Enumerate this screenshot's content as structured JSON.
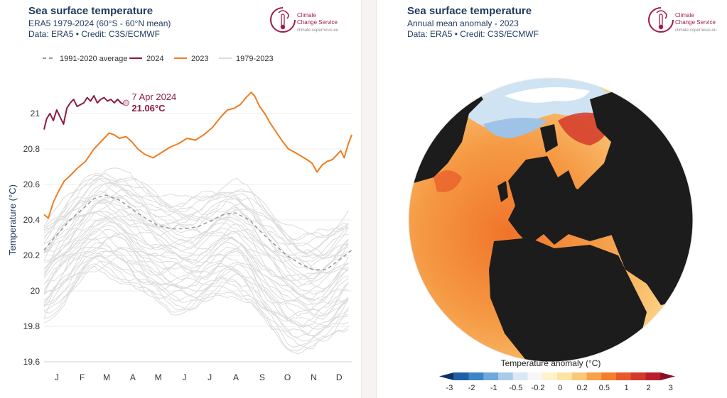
{
  "left": {
    "title": "Sea surface temperature",
    "subtitle": "ERA5 1979-2024 (60°S - 60°N mean)",
    "credit": "Data: ERA5 • Credit: C3S/ECMWF",
    "logo_line1": "Climate",
    "logo_line2": "Change Service",
    "logo_url": "climate.copernicus.eu",
    "annotation_date": "7 Apr 2024",
    "annotation_value": "21.06°C"
  },
  "right": {
    "title": "Sea surface temperature",
    "subtitle": "Annual mean anomaly - 2023",
    "credit": "Data: ERA5 • Credit: C3S/ECMWF",
    "logo_line1": "Climate",
    "logo_line2": "Change Service",
    "logo_url": "climate.copernicus.eu"
  },
  "colors": {
    "series_2024": "#8b1a3f",
    "series_2023": "#ee7d22",
    "series_average": "#9a9a9a",
    "series_history": "#dcdcdc",
    "title_text": "#1f3a5f",
    "brand": "#a01c46"
  },
  "chart_data": [
    {
      "type": "line",
      "ylabel": "Temperature (°C)",
      "xlabel": "",
      "ylim": [
        19.6,
        21.2
      ],
      "yticks": [
        19.6,
        19.8,
        20,
        20.2,
        20.4,
        20.6,
        20.8,
        21
      ],
      "ytick_labels": [
        "19.6",
        "19.8",
        "20",
        "20.2",
        "20.4",
        "20.6",
        "20.8",
        "21"
      ],
      "x_month_ticks": [
        "J",
        "F",
        "M",
        "A",
        "M",
        "J",
        "J",
        "A",
        "S",
        "O",
        "N",
        "D"
      ],
      "grid": true,
      "legend_position": "top",
      "series": [
        {
          "name": "1991-2020 average",
          "style": "dashed",
          "x": [
            1,
            15,
            32,
            46,
            60,
            74,
            91,
            105,
            121,
            135,
            152,
            166,
            182,
            196,
            213,
            227,
            244,
            258,
            274,
            288,
            305,
            319,
            335,
            349,
            365
          ],
          "values": [
            20.23,
            20.31,
            20.4,
            20.46,
            20.52,
            20.54,
            20.51,
            20.46,
            20.41,
            20.37,
            20.35,
            20.35,
            20.36,
            20.39,
            20.43,
            20.44,
            20.4,
            20.33,
            20.26,
            20.2,
            20.15,
            20.12,
            20.12,
            20.17,
            20.23
          ]
        },
        {
          "name": "2024",
          "x": [
            1,
            4,
            8,
            12,
            16,
            20,
            24,
            28,
            32,
            36,
            40,
            44,
            48,
            52,
            56,
            60,
            64,
            68,
            72,
            76,
            80,
            84,
            88,
            92,
            96,
            98
          ],
          "values": [
            20.91,
            20.97,
            21.0,
            20.96,
            21.02,
            20.98,
            20.94,
            21.03,
            21.06,
            21.08,
            21.04,
            21.05,
            21.06,
            21.09,
            21.07,
            21.1,
            21.06,
            21.08,
            21.09,
            21.07,
            21.08,
            21.06,
            21.08,
            21.06,
            21.05,
            21.06
          ]
        },
        {
          "name": "2023",
          "x": [
            1,
            6,
            12,
            18,
            25,
            32,
            40,
            50,
            60,
            70,
            78,
            84,
            90,
            98,
            105,
            112,
            120,
            130,
            140,
            150,
            160,
            170,
            180,
            190,
            200,
            210,
            218,
            226,
            233,
            240,
            246,
            250,
            256,
            262,
            268,
            275,
            282,
            290,
            298,
            305,
            312,
            318,
            324,
            330,
            336,
            342,
            348,
            352,
            356,
            361,
            365
          ],
          "values": [
            20.43,
            20.41,
            20.5,
            20.56,
            20.62,
            20.65,
            20.69,
            20.73,
            20.8,
            20.85,
            20.89,
            20.88,
            20.86,
            20.87,
            20.84,
            20.8,
            20.77,
            20.75,
            20.78,
            20.81,
            20.83,
            20.86,
            20.85,
            20.88,
            20.92,
            20.98,
            21.02,
            21.03,
            21.05,
            21.09,
            21.12,
            21.1,
            21.04,
            21.0,
            20.95,
            20.9,
            20.85,
            20.8,
            20.78,
            20.76,
            20.74,
            20.72,
            20.67,
            20.71,
            20.73,
            20.74,
            20.77,
            20.79,
            20.75,
            20.83,
            20.88
          ]
        },
        {
          "name": "1979-2023",
          "style": "light",
          "band_low": [
            19.78,
            19.85,
            19.95,
            20.02,
            20.06,
            20.06,
            20.03,
            19.98,
            19.92,
            19.88,
            19.85,
            19.84,
            19.84,
            19.88,
            19.94,
            19.95,
            19.88,
            19.78,
            19.7,
            19.64,
            19.62,
            19.62,
            19.65,
            19.72,
            19.78
          ],
          "band_high": [
            20.42,
            20.5,
            20.58,
            20.64,
            20.7,
            20.73,
            20.72,
            20.69,
            20.64,
            20.6,
            20.58,
            20.57,
            20.58,
            20.6,
            20.64,
            20.66,
            20.62,
            20.55,
            20.48,
            20.42,
            20.38,
            20.37,
            20.38,
            20.44,
            20.5
          ]
        }
      ]
    },
    {
      "type": "heatmap",
      "title": "Temperature anomaly (°C)",
      "colorbar_labels": [
        "-3",
        "-2",
        "-1",
        "-0.5",
        "-0.2",
        "0",
        "0.2",
        "0.5",
        "1",
        "2",
        "3"
      ],
      "colorbar_colors": [
        "#08306b",
        "#1f5fa8",
        "#3d85c6",
        "#6fa8dc",
        "#a9cbe8",
        "#d9e8f5",
        "#f7f7f7",
        "#fff2cc",
        "#fde4a2",
        "#fbc877",
        "#f8a04a",
        "#f47e2c",
        "#e8592a",
        "#d33a2c",
        "#b81f2a",
        "#8c0d25"
      ]
    }
  ]
}
